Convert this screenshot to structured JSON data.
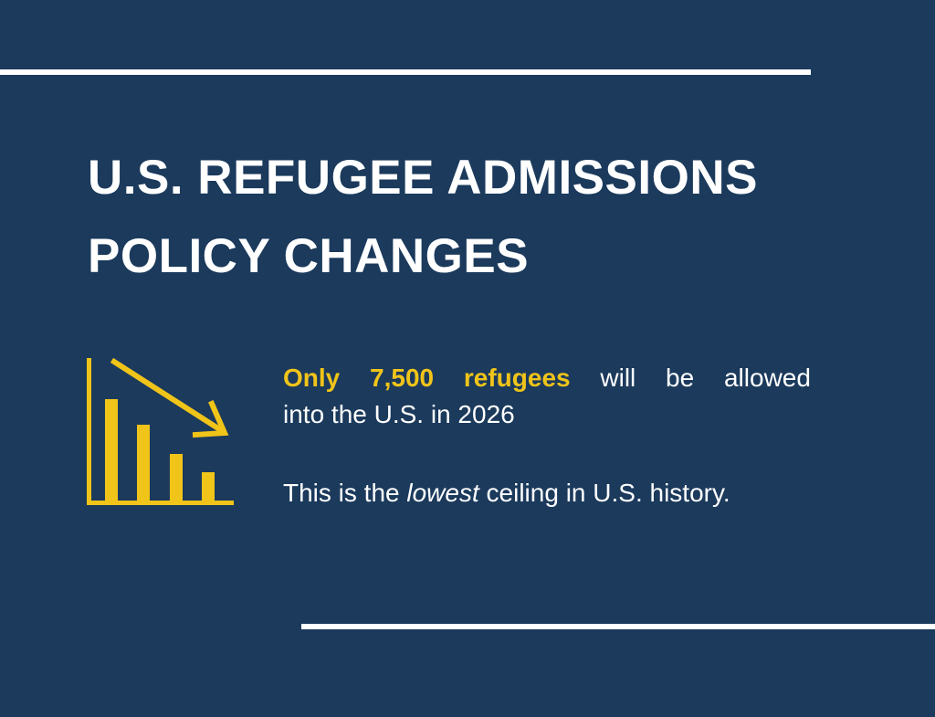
{
  "title": {
    "line1": "U.S. REFUGEE ADMISSIONS",
    "line2": "POLICY CHANGES"
  },
  "icon": {
    "name": "declining-bar-chart-icon",
    "color": "#f0c419"
  },
  "statement": {
    "highlight_words": [
      "Only",
      "7,500",
      "refugees"
    ],
    "rest_words": [
      "will",
      "be",
      "allowed"
    ],
    "line2": "into the U.S. in 2026"
  },
  "note": {
    "before": "This is the ",
    "emphasis": "lowest",
    "after": " ceiling in U.S. history."
  },
  "colors": {
    "background": "#1b3a5c",
    "accent": "#f0c419",
    "text": "#ffffff"
  }
}
